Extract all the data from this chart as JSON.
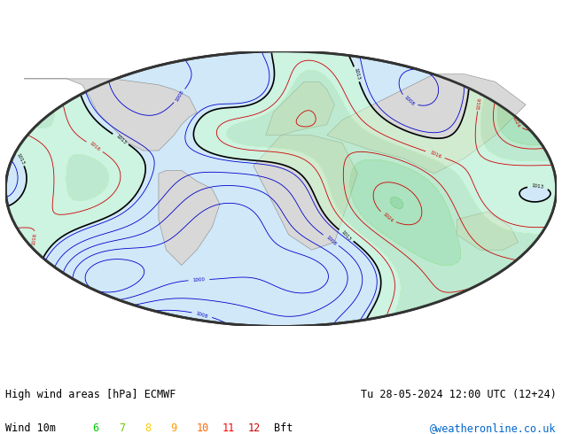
{
  "title_left": "High wind areas [hPa] ECMWF",
  "title_right": "Tu 28-05-2024 12:00 UTC (12+24)",
  "subtitle_left": "Wind 10m",
  "beaufort_labels": [
    "6",
    "7",
    "8",
    "9",
    "10",
    "11",
    "12"
  ],
  "beaufort_colors": [
    "#00cc00",
    "#66cc00",
    "#ffcc00",
    "#ff9900",
    "#ff6600",
    "#ff0000",
    "#cc0000"
  ],
  "beaufort_suffix": "Bft",
  "copyright": "@weatheronline.co.uk",
  "copyright_color": "#0066cc",
  "bg_color": "#ffffff",
  "text_color": "#000000",
  "fig_width": 6.34,
  "fig_height": 4.9,
  "dpi": 100,
  "ocean_color": "#d0e8f8",
  "land_color": "#d8d8d8",
  "map_border_color": "#333333",
  "contour_black": "#000000",
  "contour_red": "#cc0000",
  "contour_blue": "#0000cc",
  "contour_green": "#008800",
  "wind_green_light": "#ccffcc",
  "wind_green_mid": "#99ee99",
  "seed": 42
}
